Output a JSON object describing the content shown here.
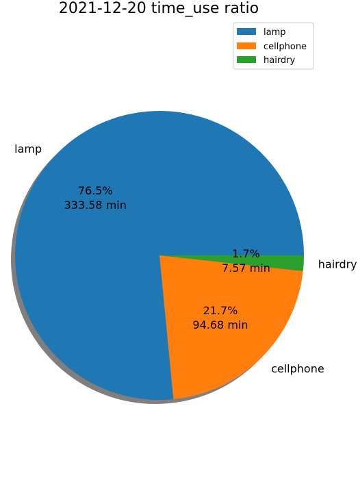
{
  "chart_data": {
    "type": "pie",
    "title": "2021-12-20 time_use ratio",
    "categories": [
      "lamp",
      "cellphone",
      "hairdry"
    ],
    "values": [
      333.58,
      94.68,
      7.57
    ],
    "percent_labels": [
      "76.5%",
      "21.7%",
      "1.7%"
    ],
    "value_labels": [
      "333.58 min",
      "94.68 min",
      "7.57 min"
    ],
    "colors": [
      "#1f77b4",
      "#ff7f0e",
      "#2ca02c"
    ],
    "start_angle_deg": 0,
    "direction": "counterclockwise",
    "shadow": true,
    "legend": {
      "placement": "top-right",
      "entries": [
        "lamp",
        "cellphone",
        "hairdry"
      ]
    }
  }
}
